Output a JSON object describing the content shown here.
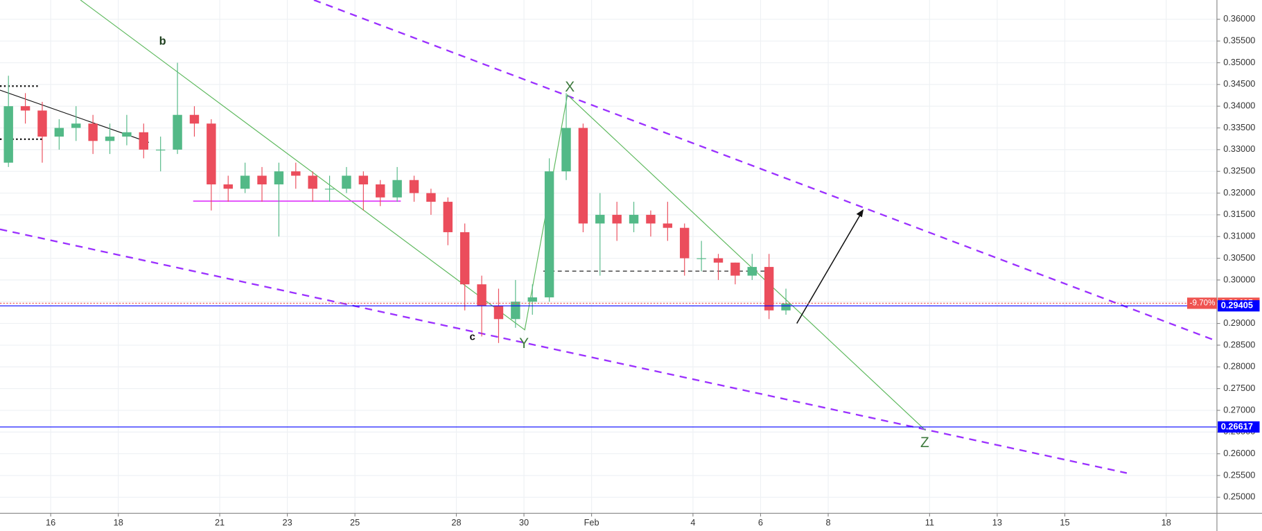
{
  "chart_data": {
    "type": "candlestick",
    "x": [
      14.75,
      15.25,
      15.75,
      16.25,
      16.75,
      17.25,
      17.75,
      18.25,
      18.75,
      19.25,
      19.75,
      20.25,
      20.75,
      21.25,
      21.75,
      22.25,
      22.75,
      23.25,
      23.75,
      24.25,
      24.75,
      25.25,
      25.75,
      26.25,
      26.75,
      27.25,
      27.75,
      28.25,
      28.75,
      29.25,
      29.75,
      30.25,
      30.75,
      31.25,
      31.75,
      32.25,
      32.75,
      33.25,
      33.75,
      34.25,
      34.75,
      35.25,
      35.75,
      36.25,
      36.75,
      37.25,
      37.75
    ],
    "open": [
      0.327,
      0.34,
      0.339,
      0.333,
      0.335,
      0.336,
      0.332,
      0.333,
      0.334,
      0.33,
      0.33,
      0.338,
      0.336,
      0.322,
      0.321,
      0.324,
      0.322,
      0.325,
      0.324,
      0.321,
      0.321,
      0.324,
      0.322,
      0.319,
      0.323,
      0.32,
      0.318,
      0.311,
      0.299,
      0.294,
      0.291,
      0.295,
      0.296,
      0.325,
      0.335,
      0.313,
      0.315,
      0.313,
      0.315,
      0.313,
      0.312,
      0.305,
      0.305,
      0.304,
      0.301,
      0.303,
      0.293
    ],
    "high": [
      0.347,
      0.343,
      0.341,
      0.337,
      0.34,
      0.338,
      0.336,
      0.338,
      0.336,
      0.333,
      0.35,
      0.34,
      0.337,
      0.324,
      0.327,
      0.326,
      0.327,
      0.327,
      0.325,
      0.324,
      0.326,
      0.325,
      0.323,
      0.326,
      0.324,
      0.321,
      0.319,
      0.313,
      0.301,
      0.298,
      0.3,
      0.299,
      0.328,
      0.343,
      0.336,
      0.32,
      0.318,
      0.318,
      0.316,
      0.318,
      0.313,
      0.309,
      0.306,
      0.304,
      0.306,
      0.306,
      0.298
    ],
    "low": [
      0.326,
      0.336,
      0.327,
      0.33,
      0.332,
      0.329,
      0.329,
      0.331,
      0.328,
      0.325,
      0.329,
      0.333,
      0.316,
      0.318,
      0.32,
      0.318,
      0.31,
      0.321,
      0.318,
      0.318,
      0.32,
      0.316,
      0.317,
      0.318,
      0.318,
      0.315,
      0.308,
      0.293,
      0.287,
      0.2855,
      0.289,
      0.292,
      0.295,
      0.323,
      0.311,
      0.301,
      0.309,
      0.311,
      0.31,
      0.309,
      0.301,
      0.302,
      0.3,
      0.299,
      0.3,
      0.291,
      0.292
    ],
    "close": [
      0.34,
      0.339,
      0.333,
      0.335,
      0.336,
      0.332,
      0.333,
      0.334,
      0.33,
      0.33,
      0.338,
      0.336,
      0.322,
      0.321,
      0.324,
      0.322,
      0.325,
      0.324,
      0.321,
      0.321,
      0.324,
      0.322,
      0.319,
      0.323,
      0.32,
      0.318,
      0.311,
      0.299,
      0.294,
      0.291,
      0.295,
      0.296,
      0.325,
      0.335,
      0.313,
      0.315,
      0.313,
      0.315,
      0.313,
      0.312,
      0.305,
      0.305,
      0.304,
      0.301,
      0.303,
      0.293,
      0.2946
    ],
    "up_color": "#53b987",
    "down_color": "#eb4d5c",
    "xlim": [
      14.5,
      50.5
    ],
    "xticks": [
      16,
      18,
      21,
      23,
      25,
      28,
      30,
      {
        "value": 32,
        "label": "Feb"
      },
      {
        "value": 35,
        "label": "4"
      },
      {
        "value": 37,
        "label": "6"
      },
      {
        "value": 39,
        "label": "8"
      },
      {
        "value": 42,
        "label": "11"
      },
      {
        "value": 44,
        "label": "13"
      },
      {
        "value": 46,
        "label": "15"
      },
      {
        "value": 49,
        "label": "18"
      }
    ],
    "ylim": [
      0.2463,
      0.36444
    ],
    "yticks": [
      {
        "value": 0.25,
        "label": "0.25000"
      },
      {
        "value": 0.255,
        "label": "0.25500"
      },
      {
        "value": 0.26,
        "label": "0.26000"
      },
      {
        "value": 0.265,
        "label": "0.26500"
      },
      {
        "value": 0.27,
        "label": "0.27000"
      },
      {
        "value": 0.275,
        "label": "0.27500"
      },
      {
        "value": 0.28,
        "label": "0.28000"
      },
      {
        "value": 0.285,
        "label": "0.28500"
      },
      {
        "value": 0.29,
        "label": "0.29000"
      },
      {
        "value": 0.295,
        "label": "0.29500"
      },
      {
        "value": 0.3,
        "label": "0.30000"
      },
      {
        "value": 0.305,
        "label": "0.30500"
      },
      {
        "value": 0.31,
        "label": "0.31000"
      },
      {
        "value": 0.315,
        "label": "0.31500"
      },
      {
        "value": 0.32,
        "label": "0.32000"
      },
      {
        "value": 0.325,
        "label": "0.32500"
      },
      {
        "value": 0.33,
        "label": "0.33000"
      },
      {
        "value": 0.335,
        "label": "0.33500"
      },
      {
        "value": 0.34,
        "label": "0.34000"
      },
      {
        "value": 0.345,
        "label": "0.34500"
      },
      {
        "value": 0.35,
        "label": "0.35000"
      },
      {
        "value": 0.355,
        "label": "0.35500"
      },
      {
        "value": 0.36,
        "label": "0.36000"
      }
    ],
    "grid": true,
    "price_lines": [
      {
        "value": 0.29465,
        "color": "#ef5350",
        "style": "dotted",
        "change": "-9.70%"
      },
      {
        "value": 0.29405,
        "color": "#0000ff",
        "style": "solid"
      },
      {
        "value": 0.26617,
        "color": "#0000ff",
        "style": "solid"
      }
    ],
    "annotations": [
      "b",
      "c",
      "X",
      "Y",
      "Z"
    ]
  }
}
